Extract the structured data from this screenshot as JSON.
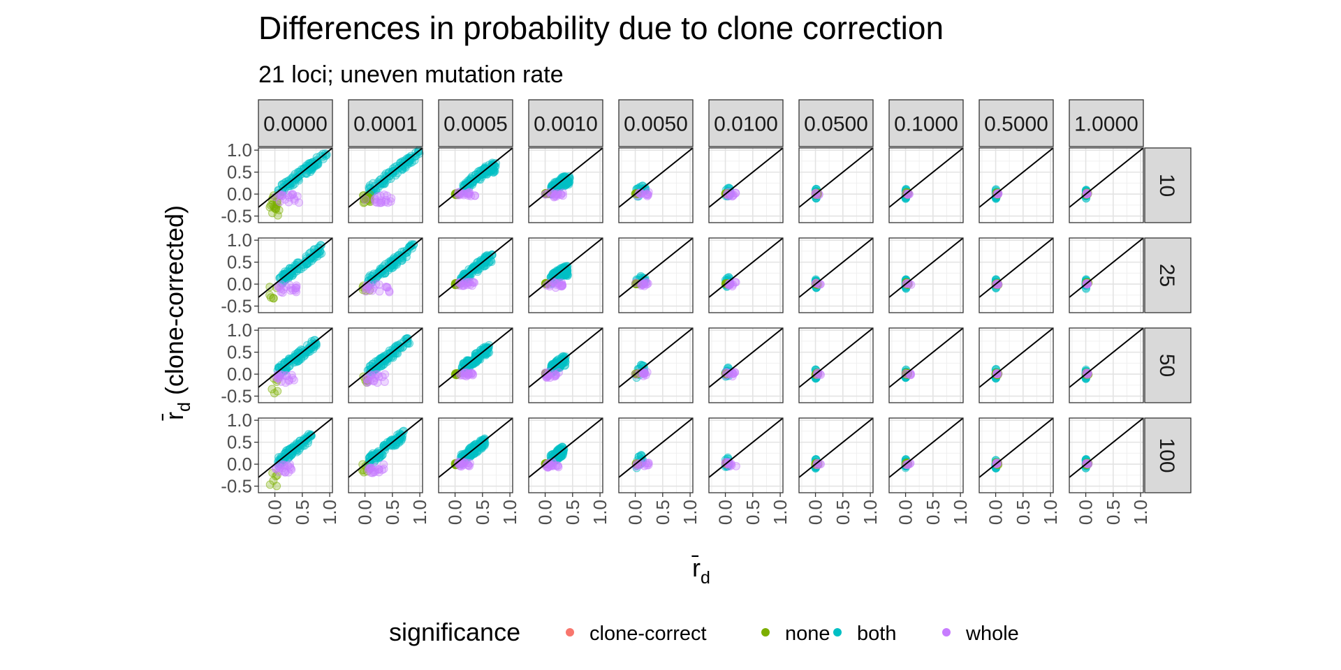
{
  "chart_data": {
    "type": "scatter",
    "title": "Differences in probability due to clone correction",
    "subtitle": "21 loci; uneven mutation rate",
    "xlabel": "r̄",
    "xlabel_sub": "d",
    "ylabel": "r̄",
    "ylabel_sub": "d",
    "ylabel_suffix": " (clone-corrected)",
    "xlim": [
      -0.3,
      1.05
    ],
    "ylim": [
      -0.65,
      1.05
    ],
    "x_ticks": [
      0.0,
      0.5,
      1.0
    ],
    "x_tick_labels": [
      "0.0",
      "0.5",
      "1.0"
    ],
    "y_ticks": [
      -0.5,
      0.0,
      0.5,
      1.0
    ],
    "y_tick_labels": [
      "-0.5",
      "0.0",
      "0.5",
      "1.0"
    ],
    "grid": true,
    "reference_line": "y = x",
    "column_facets": [
      "0.0000",
      "0.0001",
      "0.0005",
      "0.0010",
      "0.0050",
      "0.0100",
      "0.0500",
      "0.1000",
      "0.5000",
      "1.0000"
    ],
    "row_facets": [
      "10",
      "25",
      "50",
      "100"
    ],
    "legend": {
      "title": "significance",
      "position": "bottom",
      "entries": [
        {
          "label": "clone-correct",
          "color": "#F8766D"
        },
        {
          "label": "none",
          "color": "#7CAE00"
        },
        {
          "label": "both",
          "color": "#00BFC4"
        },
        {
          "label": "whole",
          "color": "#C77CFF"
        }
      ]
    },
    "series": [
      {
        "name": "both",
        "color": "#00BFC4",
        "by_column": [
          [
            0.05,
            0.95,
            0.0,
            0.95
          ],
          [
            0.05,
            1.0,
            0.0,
            1.0
          ],
          [
            0.1,
            0.75,
            0.05,
            0.6
          ],
          [
            0.1,
            0.45,
            0.05,
            0.3
          ],
          [
            0.02,
            0.2,
            0.0,
            0.12
          ],
          [
            0.0,
            0.08,
            0.0,
            0.06
          ],
          [
            0.0,
            0.02,
            0.0,
            0.02
          ],
          [
            0.0,
            0.01,
            0.0,
            0.01
          ],
          [
            0.0,
            0.01,
            0.0,
            0.01
          ],
          [
            0.0,
            0.01,
            0.0,
            0.01
          ]
        ]
      },
      {
        "name": "none",
        "color": "#7CAE00",
        "by_column": [
          [
            -0.1,
            0.1,
            -0.5,
            0.0
          ],
          [
            -0.05,
            0.1,
            -0.2,
            0.0
          ],
          [
            0.0,
            0.05,
            -0.02,
            0.02
          ],
          [
            0.0,
            0.05,
            0.0,
            0.02
          ],
          [
            0.0,
            0.05,
            0.0,
            0.02
          ],
          [
            0.0,
            0.05,
            0.0,
            0.02
          ],
          [
            0.0,
            0.05,
            -0.02,
            0.04
          ],
          [
            0.0,
            0.05,
            -0.02,
            0.04
          ],
          [
            0.0,
            0.05,
            -0.02,
            0.04
          ],
          [
            0.0,
            0.05,
            -0.02,
            0.04
          ]
        ]
      },
      {
        "name": "whole",
        "color": "#C77CFF",
        "by_column": [
          [
            0.0,
            0.45,
            -0.2,
            0.0
          ],
          [
            0.0,
            0.5,
            -0.2,
            0.0
          ],
          [
            0.05,
            0.4,
            -0.05,
            0.05
          ],
          [
            0.0,
            0.35,
            -0.08,
            0.05
          ],
          [
            0.0,
            0.25,
            -0.05,
            0.05
          ],
          [
            0.0,
            0.2,
            -0.05,
            0.05
          ],
          [
            0.0,
            0.1,
            -0.02,
            0.03
          ],
          [
            0.0,
            0.1,
            -0.02,
            0.03
          ],
          [
            0.0,
            0.05,
            -0.01,
            0.03
          ],
          [
            0.0,
            0.05,
            -0.01,
            0.03
          ]
        ]
      }
    ]
  }
}
